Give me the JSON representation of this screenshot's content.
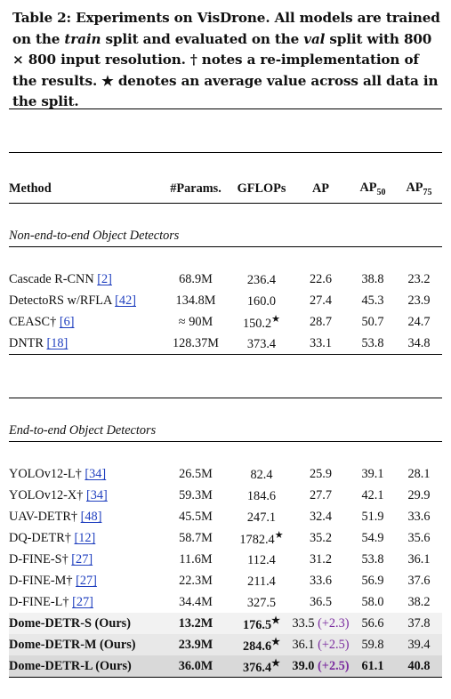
{
  "caption": {
    "label": "Table 2:",
    "text_a": " Experiments on VisDrone. All models are trained on the ",
    "train": "train",
    "text_b": " split and evaluated on the ",
    "val": "val",
    "text_c": " split with 800 × 800 input resolution. † notes a re-implementation of the results. ★ denotes an average value across all data in the split."
  },
  "headers": {
    "method": "Method",
    "params": "#Params.",
    "gflops": "GFLOPs",
    "ap": "AP",
    "ap50": "AP",
    "ap50_sub": "50",
    "ap75": "AP",
    "ap75_sub": "75"
  },
  "sections": {
    "non_e2e": "Non-end-to-end Object Detectors",
    "e2e": "End-to-end Object Detectors"
  },
  "rows": [
    {
      "name": "Cascade R-CNN ",
      "cite": "[2]",
      "params": "68.9M",
      "gflops": "236.4",
      "star": "",
      "ap": "22.6",
      "gain": "",
      "ap50": "38.8",
      "ap75": "23.2"
    },
    {
      "name": "DetectoRS w/RFLA ",
      "cite": "[42]",
      "params": "134.8M",
      "gflops": "160.0",
      "star": "",
      "ap": "27.4",
      "gain": "",
      "ap50": "45.3",
      "ap75": "23.9"
    },
    {
      "name": "CEASC† ",
      "cite": "[6]",
      "params": "≈ 90M",
      "gflops": "150.2",
      "star": "★",
      "ap": "28.7",
      "gain": "",
      "ap50": "50.7",
      "ap75": "24.7"
    },
    {
      "name": "DNTR ",
      "cite": "[18]",
      "params": "128.37M",
      "gflops": "373.4",
      "star": "",
      "ap": "33.1",
      "gain": "",
      "ap50": "53.8",
      "ap75": "34.8"
    },
    {
      "name": "YOLOv12-L† ",
      "cite": "[34]",
      "params": "26.5M",
      "gflops": "82.4",
      "star": "",
      "ap": "25.9",
      "gain": "",
      "ap50": "39.1",
      "ap75": "28.1"
    },
    {
      "name": "YOLOv12-X† ",
      "cite": "[34]",
      "params": "59.3M",
      "gflops": "184.6",
      "star": "",
      "ap": "27.7",
      "gain": "",
      "ap50": "42.1",
      "ap75": "29.9"
    },
    {
      "name": "UAV-DETR† ",
      "cite": "[48]",
      "params": "45.5M",
      "gflops": "247.1",
      "star": "",
      "ap": "32.4",
      "gain": "",
      "ap50": "51.9",
      "ap75": "33.6"
    },
    {
      "name": "DQ-DETR† ",
      "cite": "[12]",
      "params": "58.7M",
      "gflops": "1782.4",
      "star": "★",
      "ap": "35.2",
      "gain": "",
      "ap50": "54.9",
      "ap75": "35.6"
    },
    {
      "name": "D-FINE-S† ",
      "cite": "[27]",
      "params": "11.6M",
      "gflops": "112.4",
      "star": "",
      "ap": "31.2",
      "gain": "",
      "ap50": "53.8",
      "ap75": "36.1"
    },
    {
      "name": "D-FINE-M† ",
      "cite": "[27]",
      "params": "22.3M",
      "gflops": "211.4",
      "star": "",
      "ap": "33.6",
      "gain": "",
      "ap50": "56.9",
      "ap75": "37.6"
    },
    {
      "name": "D-FINE-L† ",
      "cite": "[27]",
      "params": "34.4M",
      "gflops": "327.5",
      "star": "",
      "ap": "36.5",
      "gain": "",
      "ap50": "58.0",
      "ap75": "38.2"
    },
    {
      "name": "Dome-DETR-S ",
      "cite": "(Ours)",
      "params": "13.2M",
      "gflops": "176.5",
      "star": "★",
      "ap": "33.5",
      "gain": "(+2.3)",
      "ap50": "56.6",
      "ap75": "37.8"
    },
    {
      "name": "Dome-DETR-M ",
      "cite": "(Ours)",
      "params": "23.9M",
      "gflops": "284.6",
      "star": "★",
      "ap": "36.1",
      "gain": "(+2.5)",
      "ap50": "59.8",
      "ap75": "39.4"
    },
    {
      "name": "Dome-DETR-L ",
      "cite": "(Ours)",
      "params": "36.0M",
      "gflops": "376.4",
      "star": "★",
      "ap": "39.0",
      "gain": "(+2.5)",
      "ap50": "61.1",
      "ap75": "40.8"
    }
  ]
}
